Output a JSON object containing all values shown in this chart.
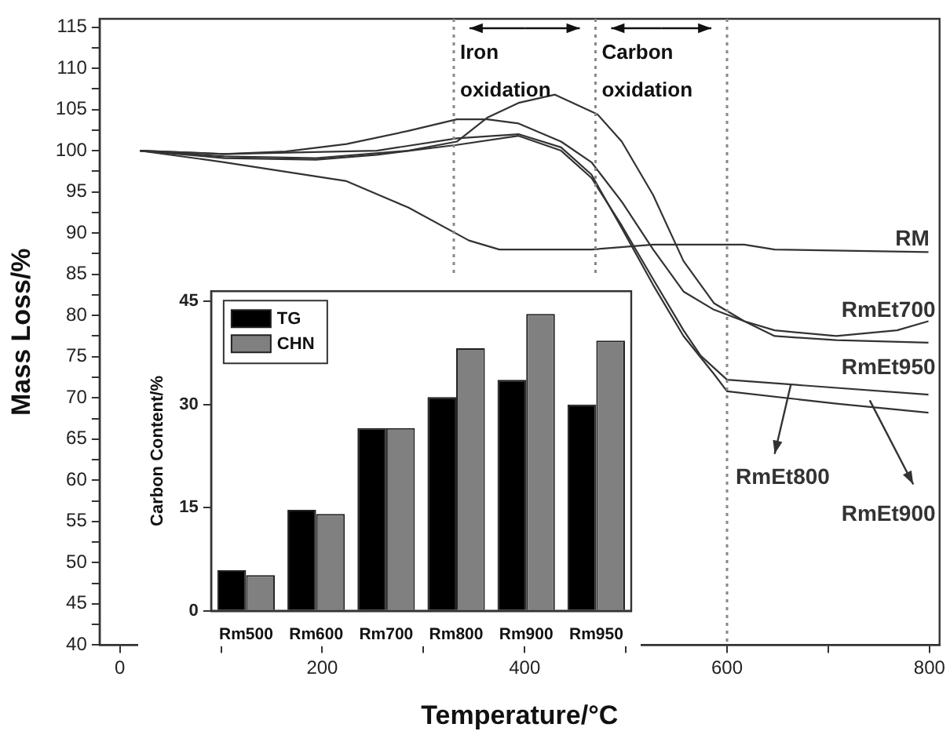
{
  "chart_data": [
    {
      "type": "line",
      "xlabel": "Temperature/°C",
      "ylabel": "Mass Loss/%",
      "xlim": [
        -20,
        810
      ],
      "xticks": [
        0,
        {
          "value": 100,
          "label": null
        },
        200,
        {
          "value": 300,
          "label": null
        },
        400,
        {
          "value": 500,
          "label": null
        },
        600,
        {
          "value": 700,
          "label": null
        },
        800
      ],
      "ylim": [
        40,
        116
      ],
      "yticks": [
        40,
        {
          "value": 42.5,
          "label": null
        },
        45,
        {
          "value": 47.5,
          "label": null
        },
        50,
        {
          "value": 52.5,
          "label": null
        },
        55,
        {
          "value": 57.5,
          "label": null
        },
        60,
        {
          "value": 62.5,
          "label": null
        },
        65,
        {
          "value": 67.5,
          "label": null
        },
        70,
        {
          "value": 72.5,
          "label": null
        },
        75,
        {
          "value": 77.5,
          "label": null
        },
        80,
        {
          "value": 82.5,
          "label": null
        },
        85,
        {
          "value": 87.5,
          "label": null
        },
        90,
        {
          "value": 92.5,
          "label": null
        },
        95,
        {
          "value": 97.5,
          "label": null
        },
        100,
        {
          "value": 102.5,
          "label": null
        },
        105,
        {
          "value": 107.5,
          "label": null
        },
        110,
        {
          "value": 112.5,
          "label": null
        },
        115
      ],
      "marker": "none",
      "line_style": "solid",
      "grid": false,
      "series": [
        {
          "name": "RM",
          "color": "#333333",
          "x": [
            20,
            103,
            224,
            285,
            345,
            375,
            466,
            527,
            617,
            647,
            799
          ],
          "values": [
            100,
            98.6,
            96.3,
            93.1,
            89.1,
            88.0,
            88.0,
            88.6,
            88.6,
            88.0,
            87.7
          ]
        },
        {
          "name": "RmEt700",
          "color": "#333333",
          "x": [
            20,
            103,
            164,
            224,
            285,
            333,
            363,
            394,
            436,
            466,
            496,
            527,
            557,
            587,
            617,
            647,
            708,
            768,
            799
          ],
          "values": [
            100,
            99.6,
            99.9,
            100.8,
            102.4,
            103.8,
            103.8,
            103.3,
            101.1,
            98.6,
            93.8,
            88.0,
            82.9,
            80.7,
            79.3,
            78.2,
            77.5,
            78.2,
            79.3
          ]
        },
        {
          "name": "RmEt950",
          "color": "#333333",
          "x": [
            20,
            103,
            194,
            285,
            333,
            363,
            394,
            430,
            472,
            496,
            527,
            557,
            587,
            617,
            647,
            708,
            799
          ],
          "values": [
            100,
            99.3,
            99.1,
            100,
            101.1,
            104,
            105.8,
            106.8,
            104.4,
            101.1,
            94.6,
            86.6,
            81.5,
            79.3,
            77.5,
            77.0,
            76.7
          ]
        },
        {
          "name": "RmEt800",
          "color": "#333333",
          "x": [
            20,
            103,
            194,
            254,
            333,
            394,
            436,
            466,
            496,
            527,
            557,
            574,
            600,
            677,
            799
          ],
          "values": [
            100,
            99.1,
            98.9,
            99.5,
            100.7,
            101.8,
            100,
            96.7,
            90.9,
            84.4,
            78.2,
            75.1,
            72.2,
            71.5,
            70.4
          ]
        },
        {
          "name": "RmEt900",
          "color": "#333333",
          "x": [
            20,
            103,
            254,
            333,
            394,
            436,
            466,
            496,
            527,
            557,
            587,
            600,
            708,
            799
          ],
          "values": [
            100,
            99.6,
            100,
            101.5,
            102,
            100.4,
            97.1,
            90.6,
            83.7,
            77.5,
            72.9,
            70.8,
            69.3,
            68.2
          ]
        }
      ],
      "ref_lines": [
        {
          "axis": "x",
          "value": 330,
          "color": "#888888",
          "line_style": "dotted"
        },
        {
          "axis": "x",
          "value": 470,
          "color": "#888888",
          "line_style": "dotted"
        },
        {
          "axis": "x",
          "value": 600,
          "color": "#888888",
          "line_style": "dotted"
        }
      ],
      "legend": "right",
      "annotations": [
        "Iron\noxidation",
        "Carbon\noxidation"
      ]
    },
    {
      "type": "bar",
      "ylabel": "Carbon Content/%",
      "categories": [
        "Rm500",
        "Rm600",
        "Rm700",
        "Rm800",
        "Rm900",
        "Rm950"
      ],
      "ylim": [
        0,
        46.5
      ],
      "yticks": [
        0,
        15,
        30,
        45
      ],
      "legend": "top left",
      "series": [
        {
          "name": "TG",
          "color": "#000000",
          "values": [
            5.9,
            14.7,
            26.6,
            31.1,
            33.6,
            30
          ]
        },
        {
          "name": "CHN",
          "color": "#808080",
          "values": [
            5.2,
            14.1,
            26.6,
            38.2,
            43.2,
            39.3
          ]
        }
      ]
    }
  ]
}
